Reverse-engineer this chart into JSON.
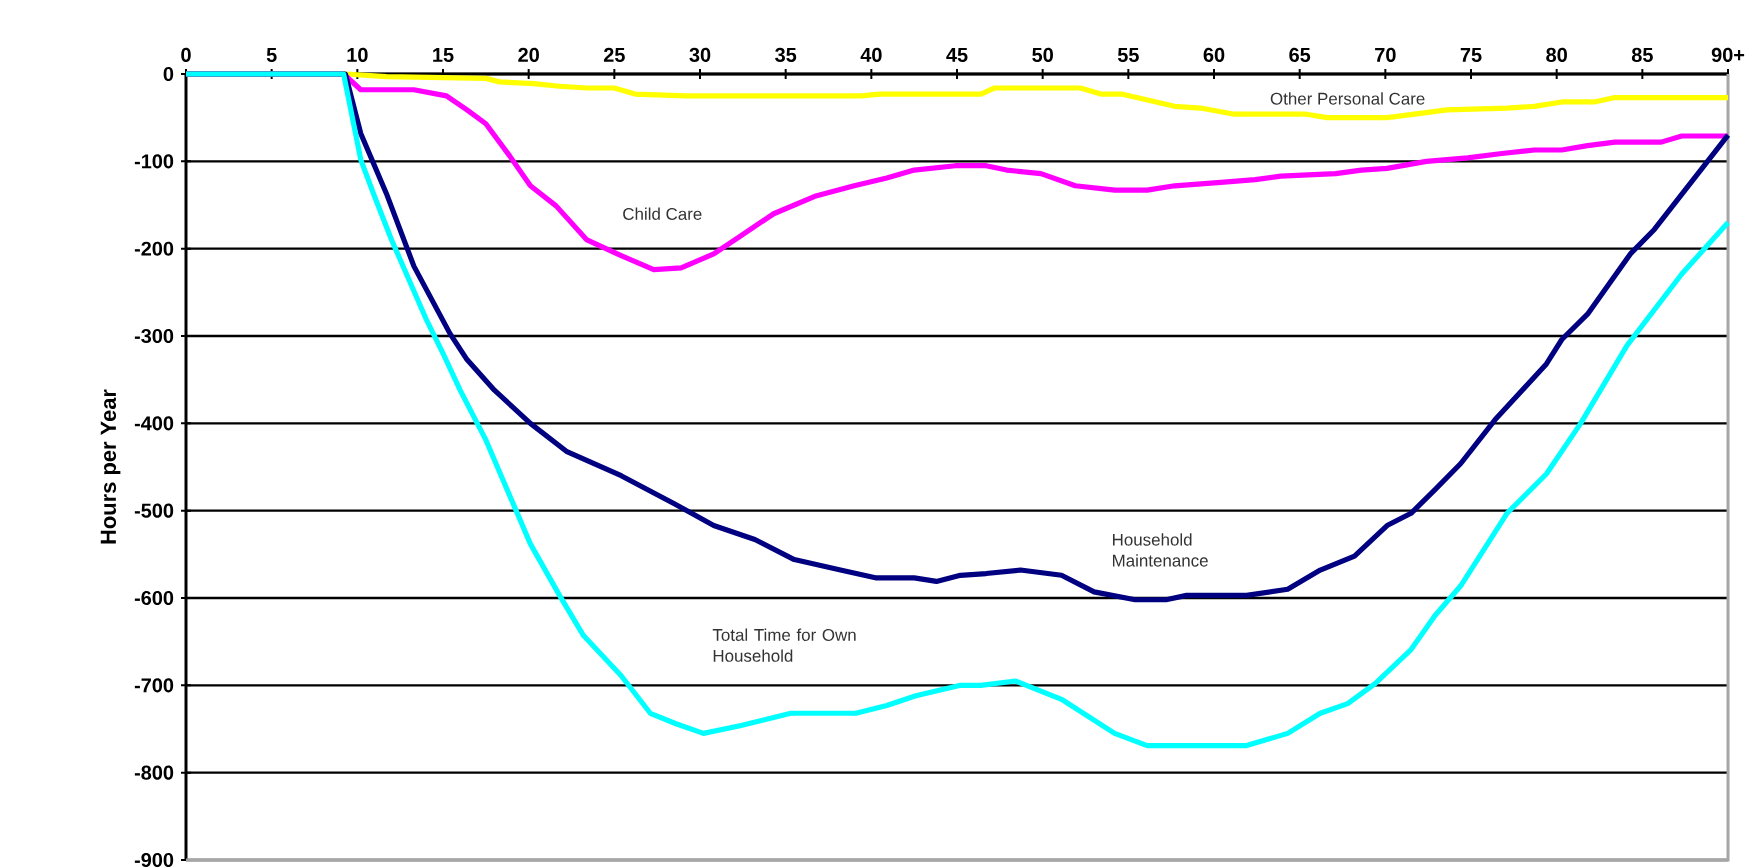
{
  "chart_data": {
    "type": "line",
    "ylabel": "Hours per Year",
    "xlim": [
      0,
      90
    ],
    "ylim": [
      -900,
      0
    ],
    "xticks": [
      0,
      5,
      10,
      15,
      20,
      25,
      30,
      35,
      40,
      45,
      50,
      55,
      60,
      65,
      70,
      75,
      80,
      85,
      {
        "value": 90,
        "label": "90+"
      }
    ],
    "yticks": [
      0,
      -100,
      -200,
      -300,
      -400,
      -500,
      -600,
      -700,
      -800,
      -900
    ],
    "grid": "y",
    "series": [
      {
        "name": "Other Personal Care",
        "color": "#ffff00",
        "x": [
          0,
          9.3,
          11.7,
          17.5,
          18.3,
          20.3,
          21.8,
          23.4,
          25,
          26.2,
          29.2,
          39.4,
          40.5,
          46.4,
          47.2,
          52.2,
          53.4,
          54.6,
          57.7,
          59.2,
          61.2,
          65.4,
          66.6,
          70.1,
          71.7,
          73.6,
          77.1,
          78.7,
          80.3,
          82.2,
          83.4,
          90
        ],
        "values": [
          0,
          0,
          -3,
          -5,
          -9,
          -11,
          -14,
          -16,
          -16,
          -23,
          -25,
          -25,
          -23,
          -23,
          -16,
          -16,
          -23,
          -23,
          -37,
          -39,
          -46,
          -46,
          -50,
          -50,
          -46,
          -41,
          -39,
          -37,
          -32,
          -32,
          -27,
          -27
        ]
      },
      {
        "name": "Child Care",
        "color": "#ff00ff",
        "x": [
          0,
          9.2,
          10.2,
          13.3,
          15.2,
          16.4,
          17.5,
          18.9,
          20.1,
          21.6,
          23.4,
          25.4,
          27.3,
          28.9,
          30.8,
          32.4,
          34.3,
          36.7,
          39,
          40.9,
          42.5,
          44.9,
          46.7,
          47.9,
          49.9,
          51.9,
          54.2,
          56.1,
          57.7,
          60.4,
          62.4,
          63.9,
          67.1,
          68.6,
          70.1,
          72.4,
          74.8,
          76.8,
          78.7,
          80.3,
          81.8,
          83.4,
          86.1,
          87.3,
          90
        ],
        "values": [
          0,
          0,
          -18,
          -18,
          -25,
          -41,
          -57,
          -94,
          -128,
          -151,
          -190,
          -208,
          -224,
          -222,
          -206,
          -185,
          -160,
          -140,
          -128,
          -119,
          -110,
          -105,
          -105,
          -110,
          -114,
          -128,
          -133,
          -133,
          -128,
          -124,
          -121,
          -117,
          -114,
          -110,
          -108,
          -100,
          -96,
          -91,
          -87,
          -87,
          -82,
          -78,
          -78,
          -71,
          -71
        ]
      },
      {
        "name": "Household Maintenance",
        "color": "#000080",
        "x": [
          0,
          9.3,
          10.2,
          11.7,
          13.3,
          15.4,
          16.4,
          18,
          20.1,
          22.2,
          25.4,
          28.5,
          30.8,
          33.2,
          35.5,
          38.2,
          40.3,
          42.5,
          43.8,
          45.2,
          46.7,
          48.7,
          51.1,
          53,
          55.4,
          57.2,
          58.4,
          61.9,
          64.3,
          66.2,
          68.2,
          70.1,
          71.5,
          72.9,
          74.4,
          76.4,
          79.4,
          80.3,
          81.8,
          84.3,
          85.7,
          90
        ],
        "values": [
          0,
          0,
          -68,
          -137,
          -220,
          -297,
          -327,
          -362,
          -400,
          -432,
          -460,
          -492,
          -517,
          -533,
          -556,
          -568,
          -577,
          -577,
          -581,
          -574,
          -572,
          -568,
          -574,
          -593,
          -602,
          -602,
          -597,
          -597,
          -590,
          -568,
          -552,
          -517,
          -503,
          -476,
          -446,
          -396,
          -332,
          -304,
          -275,
          -206,
          -178,
          -70
        ]
      },
      {
        "name": "Total Time for Own Household",
        "color": "#00ffff",
        "x": [
          0,
          9.2,
          10.2,
          11,
          12,
          13,
          14,
          15,
          16,
          17,
          17.5,
          20.1,
          21.8,
          23.2,
          25.4,
          27.1,
          28.6,
          30.2,
          32.4,
          35.3,
          39.1,
          40.9,
          42.6,
          45.2,
          46.4,
          48.4,
          51.1,
          54.2,
          56.1,
          61.9,
          64.3,
          66.2,
          67.8,
          69.4,
          71.5,
          72.9,
          74.4,
          77.1,
          79.4,
          81.4,
          84.1,
          87.3,
          90
        ],
        "values": [
          0,
          0,
          -98,
          -140,
          -190,
          -235,
          -280,
          -320,
          -362,
          -400,
          -419,
          -538,
          -597,
          -643,
          -689,
          -732,
          -744,
          -755,
          -746,
          -732,
          -732,
          -723,
          -712,
          -700,
          -700,
          -695,
          -716,
          -755,
          -769,
          -769,
          -755,
          -732,
          -721,
          -698,
          -659,
          -620,
          -586,
          -503,
          -458,
          -400,
          -311,
          -229,
          -170
        ]
      }
    ]
  }
}
